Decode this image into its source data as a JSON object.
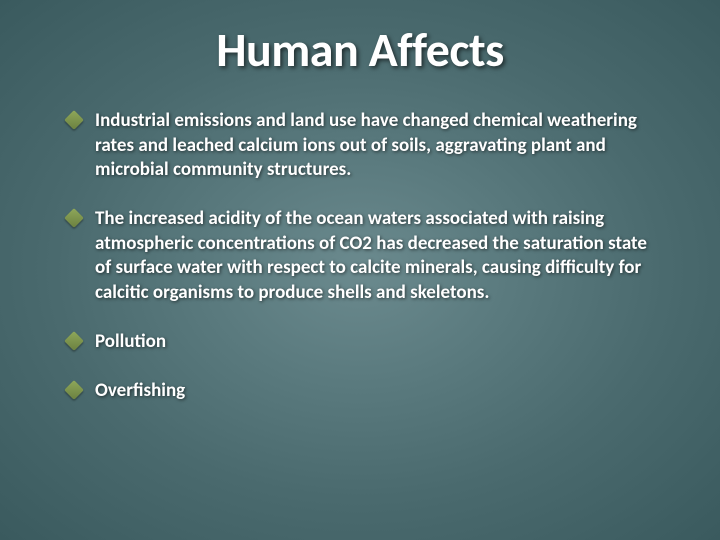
{
  "slide": {
    "title": "Human Affects",
    "title_fontsize": 48,
    "title_color": "#ffffff",
    "background_gradient": [
      "#6b8a8e",
      "#5a7a7e",
      "#4a6a6e",
      "#3a5a5e"
    ],
    "bullet_marker_color": "#8fa85a",
    "text_color": "#ffffff",
    "body_fontsize": 19,
    "bullets": [
      {
        "text": "Industrial emissions and land use have changed chemical weathering rates and leached calcium ions out of soils, aggravating  plant and microbial community structures."
      },
      {
        "text": "The increased acidity of the ocean waters associated with raising atmospheric concentrations of CO2 has decreased the saturation state of surface water with respect to calcite minerals, causing difficulty for calcitic organisms to produce shells and skeletons."
      },
      {
        "text": "Pollution"
      },
      {
        "text": "Overfishing"
      }
    ]
  }
}
